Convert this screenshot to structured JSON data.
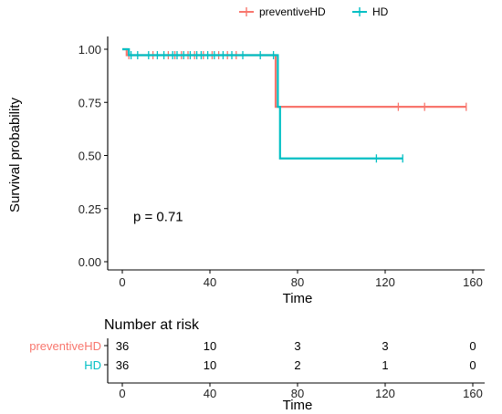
{
  "chart_data": [
    {
      "type": "line",
      "subtype": "kaplan-meier",
      "title": "",
      "xlabel": "Time",
      "ylabel": "Survival probability",
      "xlim": [
        0,
        160
      ],
      "ylim": [
        0,
        1
      ],
      "x_ticks": [
        0,
        40,
        80,
        120,
        160
      ],
      "y_ticks": [
        0.0,
        0.25,
        0.5,
        0.75,
        1.0
      ],
      "y_tick_labels": [
        "0.00",
        "0.25",
        "0.50",
        "0.75",
        "1.00"
      ],
      "grid": false,
      "legend_position": "top",
      "annotation": "p = 0.71",
      "series": [
        {
          "name": "preventiveHD",
          "color": "#F8766D",
          "steps": [
            [
              0,
              1.0
            ],
            [
              2,
              0.972
            ],
            [
              70,
              0.729
            ]
          ],
          "end_x": 157,
          "censor_x": [
            3,
            14,
            21,
            24,
            27,
            30,
            33,
            37,
            41,
            44,
            48,
            52,
            126,
            138,
            157
          ]
        },
        {
          "name": "HD",
          "color": "#00BFC4",
          "steps": [
            [
              0,
              1.0
            ],
            [
              3,
              0.972
            ],
            [
              71,
              0.729
            ],
            [
              72,
              0.486
            ]
          ],
          "end_x": 128,
          "censor_x": [
            4,
            7,
            12,
            16,
            19,
            23,
            25,
            28,
            31,
            34,
            36,
            39,
            42,
            46,
            50,
            55,
            63,
            69,
            116,
            128
          ]
        }
      ]
    },
    {
      "type": "table",
      "title": "Number at risk",
      "xlabel": "Time",
      "x_ticks": [
        0,
        40,
        80,
        120,
        160
      ],
      "rows": [
        {
          "name": "preventiveHD",
          "color": "#F8766D",
          "values": [
            36,
            10,
            3,
            3,
            0
          ]
        },
        {
          "name": "HD",
          "color": "#00BFC4",
          "values": [
            36,
            10,
            2,
            1,
            0
          ]
        }
      ]
    }
  ]
}
